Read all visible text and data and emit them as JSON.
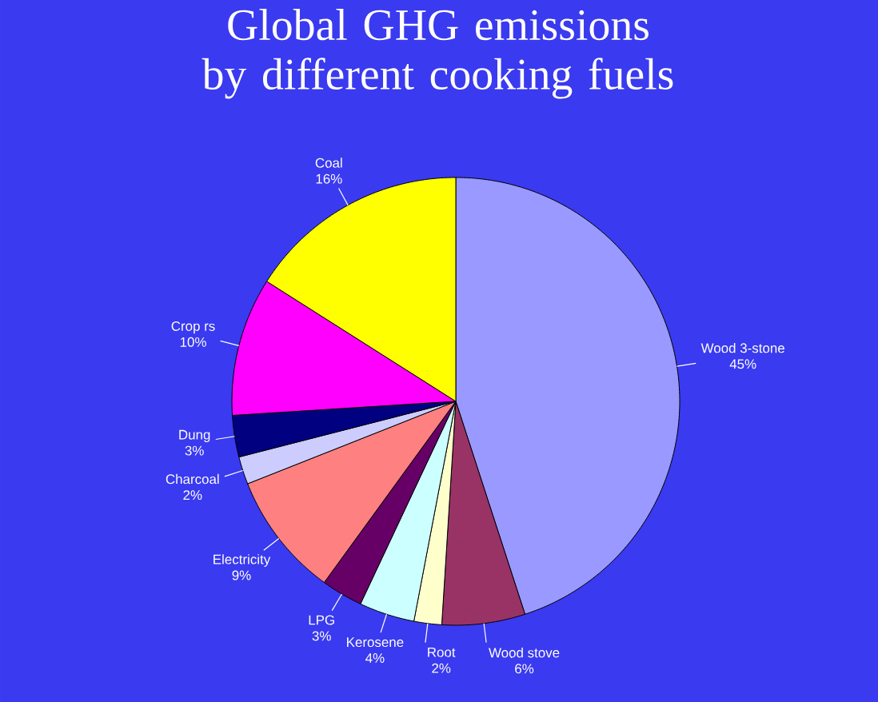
{
  "chart_data": {
    "type": "pie",
    "title": "Global GHG emissions by different cooking fuels",
    "categories": [
      "Wood 3-stone",
      "Wood stove",
      "Root",
      "Kerosene",
      "LPG",
      "Electricity",
      "Charcoal",
      "Dung",
      "Crop rs",
      "Coal"
    ],
    "values": [
      45,
      6,
      2,
      4,
      3,
      9,
      2,
      3,
      10,
      16
    ],
    "value_labels": [
      "45%",
      "6%",
      "2%",
      "4%",
      "3%",
      "9%",
      "2%",
      "3%",
      "10%",
      "16%"
    ],
    "colors": [
      "#9999ff",
      "#993366",
      "#ffffcc",
      "#ccffff",
      "#660066",
      "#ff8080",
      "#ccccff",
      "#000080",
      "#ff00ff",
      "#ffff00"
    ]
  }
}
